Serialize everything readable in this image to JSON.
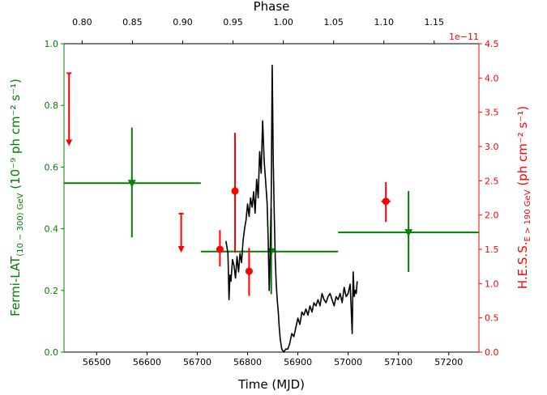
{
  "chart_data": {
    "type": "scatter",
    "title": "",
    "top_axis": {
      "label": "Phase",
      "ticks": [
        "0.80",
        "0.85",
        "0.90",
        "0.95",
        "1.00",
        "1.05",
        "1.10",
        "1.15"
      ]
    },
    "bottom_axis": {
      "label": "Time (MJD)",
      "xlim": [
        56435,
        57260
      ],
      "ticks": [
        "56500",
        "56600",
        "56700",
        "56800",
        "56900",
        "57000",
        "57100",
        "57200"
      ]
    },
    "left_axis": {
      "label_main": "Fermi-LAT",
      "label_sub": "(10 − 300) GeV",
      "label_unit": " (10⁻⁹ ph cm⁻² s⁻¹)",
      "ylim": [
        0,
        1.0
      ],
      "ticks": [
        "0.0",
        "0.2",
        "0.4",
        "0.6",
        "0.8",
        "1.0"
      ],
      "color": "#008000"
    },
    "right_axis": {
      "label_main": "H.E.S.S.",
      "label_sub": "E > 190 GeV",
      "label_unit": " (ph cm⁻² s⁻¹)",
      "offset_text": "1e−11",
      "ylim": [
        0,
        4.5
      ],
      "ticks": [
        "0.0",
        "0.5",
        "1.0",
        "1.5",
        "2.0",
        "2.5",
        "3.0",
        "3.5",
        "4.0",
        "4.5"
      ],
      "color": "#ff0000"
    },
    "fermi_points": [
      {
        "x": 56570,
        "xlo": 56435,
        "xhi": 56707,
        "y": 0.548,
        "ylo": 0.372,
        "yhi": 0.728
      },
      {
        "x": 56847,
        "xlo": 56707,
        "xhi": 56980,
        "y": 0.326,
        "ylo": 0.188,
        "yhi": 0.468
      },
      {
        "x": 57120,
        "xlo": 56980,
        "xhi": 57260,
        "y": 0.388,
        "ylo": 0.26,
        "yhi": 0.522
      }
    ],
    "hess_points": [
      {
        "x": 56745,
        "xerr": 6,
        "y": 1.5,
        "ylo": 1.25,
        "yhi": 1.78
      },
      {
        "x": 56775,
        "xerr": 5,
        "y": 2.35,
        "ylo": 1.45,
        "yhi": 3.2
      },
      {
        "x": 56803,
        "xerr": 6,
        "y": 1.18,
        "ylo": 0.82,
        "yhi": 1.52
      },
      {
        "x": 57075,
        "xerr": 9,
        "y": 2.2,
        "ylo": 1.9,
        "yhi": 2.48
      }
    ],
    "hess_upper_limits": [
      {
        "x": 56445,
        "y": 4.07
      },
      {
        "x": 56668,
        "y": 2.02
      }
    ],
    "lightcurve": {
      "color": "#000000",
      "points": [
        [
          56757,
          0.36
        ],
        [
          56759,
          0.34
        ],
        [
          56761,
          0.32
        ],
        [
          56763,
          0.17
        ],
        [
          56765,
          0.25
        ],
        [
          56767,
          0.23
        ],
        [
          56770,
          0.3
        ],
        [
          56773,
          0.28
        ],
        [
          56776,
          0.24
        ],
        [
          56779,
          0.31
        ],
        [
          56782,
          0.26
        ],
        [
          56785,
          0.32
        ],
        [
          56788,
          0.29
        ],
        [
          56791,
          0.36
        ],
        [
          56794,
          0.4
        ],
        [
          56797,
          0.43
        ],
        [
          56800,
          0.48
        ],
        [
          56803,
          0.44
        ],
        [
          56806,
          0.5
        ],
        [
          56809,
          0.47
        ],
        [
          56812,
          0.52
        ],
        [
          56815,
          0.45
        ],
        [
          56818,
          0.56
        ],
        [
          56821,
          0.5
        ],
        [
          56824,
          0.65
        ],
        [
          56827,
          0.58
        ],
        [
          56830,
          0.75
        ],
        [
          56833,
          0.62
        ],
        [
          56836,
          0.55
        ],
        [
          56839,
          0.48
        ],
        [
          56841,
          0.36
        ],
        [
          56843,
          0.2
        ],
        [
          56845,
          0.32
        ],
        [
          56847,
          0.5
        ],
        [
          56849,
          0.93
        ],
        [
          56851,
          0.62
        ],
        [
          56853,
          0.45
        ],
        [
          56855,
          0.3
        ],
        [
          56857,
          0.22
        ],
        [
          56859,
          0.17
        ],
        [
          56861,
          0.13
        ],
        [
          56863,
          0.08
        ],
        [
          56865,
          0.04
        ],
        [
          56868,
          0.01
        ],
        [
          56872,
          0.0
        ],
        [
          56876,
          0.01
        ],
        [
          56880,
          0.01
        ],
        [
          56884,
          0.03
        ],
        [
          56888,
          0.06
        ],
        [
          56892,
          0.05
        ],
        [
          56896,
          0.08
        ],
        [
          56900,
          0.11
        ],
        [
          56904,
          0.09
        ],
        [
          56908,
          0.13
        ],
        [
          56912,
          0.12
        ],
        [
          56916,
          0.14
        ],
        [
          56920,
          0.12
        ],
        [
          56924,
          0.15
        ],
        [
          56928,
          0.13
        ],
        [
          56932,
          0.16
        ],
        [
          56936,
          0.15
        ],
        [
          56940,
          0.17
        ],
        [
          56944,
          0.15
        ],
        [
          56948,
          0.19
        ],
        [
          56952,
          0.17
        ],
        [
          56956,
          0.16
        ],
        [
          56960,
          0.18
        ],
        [
          56964,
          0.19
        ],
        [
          56968,
          0.17
        ],
        [
          56972,
          0.15
        ],
        [
          56976,
          0.18
        ],
        [
          56980,
          0.17
        ],
        [
          56984,
          0.19
        ],
        [
          56988,
          0.16
        ],
        [
          56992,
          0.21
        ],
        [
          56996,
          0.18
        ],
        [
          57000,
          0.19
        ],
        [
          57004,
          0.22
        ],
        [
          57006,
          0.14
        ],
        [
          57008,
          0.06
        ],
        [
          57010,
          0.26
        ],
        [
          57012,
          0.18
        ],
        [
          57014,
          0.2
        ],
        [
          57016,
          0.19
        ],
        [
          57018,
          0.23
        ]
      ]
    }
  }
}
